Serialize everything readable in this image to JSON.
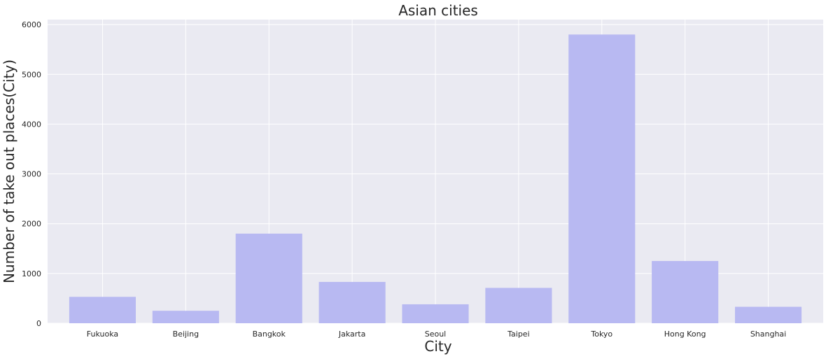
{
  "chart_data": {
    "type": "bar",
    "title": "Asian cities",
    "xlabel": "City",
    "ylabel": "Number of take out places(City)",
    "categories": [
      "Fukuoka",
      "Beijing",
      "Bangkok",
      "Jakarta",
      "Seoul",
      "Taipei",
      "Tokyo",
      "Hong Kong",
      "Shanghai"
    ],
    "values": [
      530,
      250,
      1800,
      830,
      380,
      710,
      5800,
      1250,
      330
    ],
    "ylim": [
      0,
      6100
    ],
    "yticks": [
      0,
      1000,
      2000,
      3000,
      4000,
      5000,
      6000
    ],
    "grid": true,
    "legend": "none",
    "colors": {
      "bar": "#b8b9f2",
      "plot_background": "#eaeaf2",
      "grid": "#ffffff"
    }
  }
}
